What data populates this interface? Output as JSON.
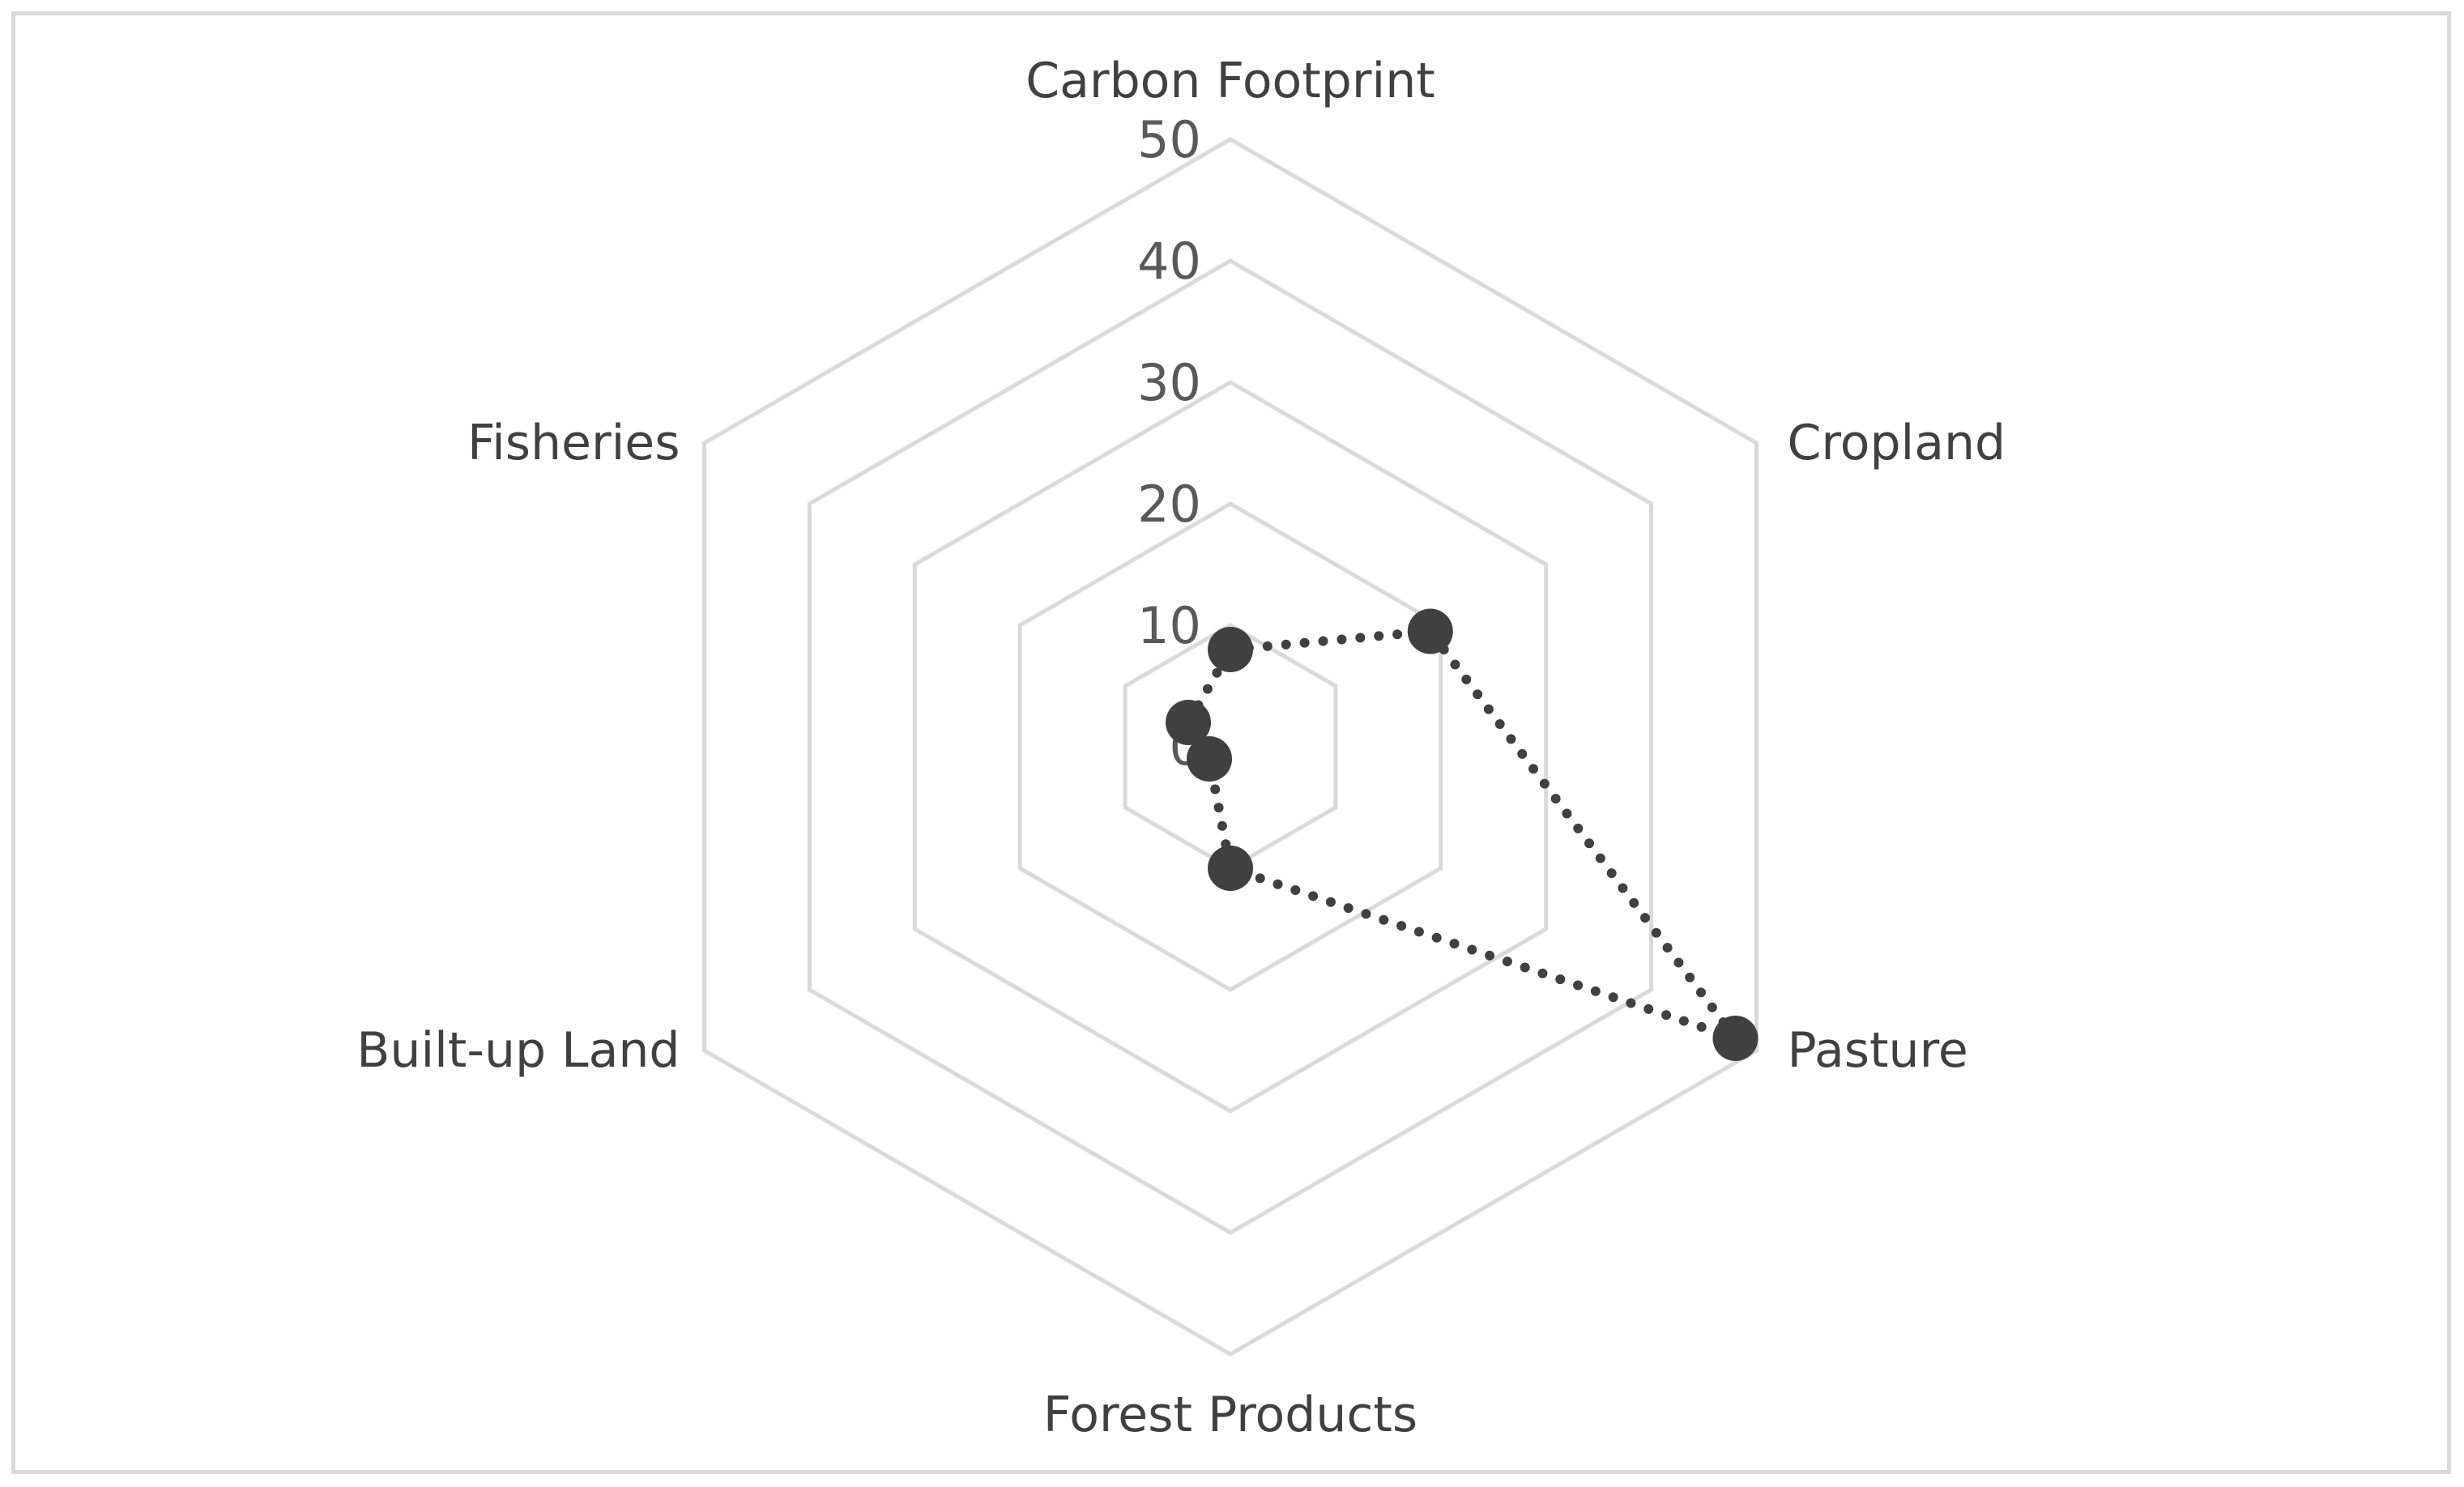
{
  "chart_data": {
    "type": "radar",
    "axes": [
      "Carbon Footprint",
      "Cropland",
      "Pasture",
      "Forest Products",
      "Built-up Land",
      "Fisheries"
    ],
    "values": [
      8,
      19,
      48,
      10,
      2,
      4
    ],
    "rlim": [
      0,
      50
    ],
    "ticks": [
      "0",
      "10",
      "20",
      "30",
      "40",
      "50"
    ],
    "grid": true,
    "line_style": "dotted",
    "colors": {
      "grid": "#d9d9d9",
      "series": "#404040"
    }
  }
}
